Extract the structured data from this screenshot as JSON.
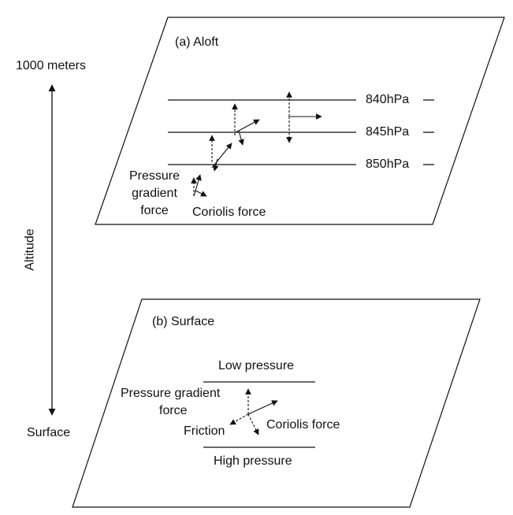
{
  "altitude_axis": {
    "top_label": "1000 meters",
    "bottom_label": "Surface",
    "axis_label": "Altitude"
  },
  "aloft_panel": {
    "title": "(a) Aloft",
    "isobars": [
      "840hPa",
      "845hPa",
      "850hPa"
    ],
    "pressure_gradient_label": [
      "Pressure",
      "gradient",
      "force"
    ],
    "coriolis_label": "Coriolis force"
  },
  "surface_panel": {
    "title": "(b) Surface",
    "low_pressure_label": "Low pressure",
    "high_pressure_label": "High pressure",
    "pressure_gradient_label": [
      "Pressure gradient",
      "force"
    ],
    "friction_label": "Friction",
    "coriolis_label": "Coriolis force"
  },
  "colors": {
    "ink": "#111111",
    "background": "#ffffff"
  }
}
